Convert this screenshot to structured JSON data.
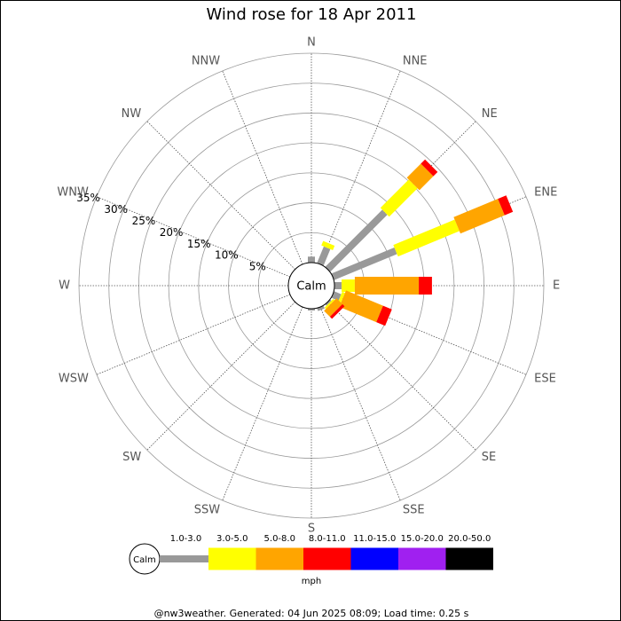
{
  "chart_data": {
    "type": "wind_rose",
    "title": "Wind rose for 18 Apr 2011",
    "directions": [
      "N",
      "NNE",
      "NE",
      "ENE",
      "E",
      "ESE",
      "SE",
      "SSE",
      "S",
      "SSW",
      "SW",
      "WSW",
      "W",
      "WNW",
      "NW",
      "NNW"
    ],
    "rlim": [
      0,
      35
    ],
    "rticks": [
      {
        "value": 5,
        "label": "5%"
      },
      {
        "value": 10,
        "label": "10%"
      },
      {
        "value": 15,
        "label": "15%"
      },
      {
        "value": 20,
        "label": "20%"
      },
      {
        "value": 25,
        "label": "25%"
      },
      {
        "value": 30,
        "label": "30%"
      },
      {
        "value": 35,
        "label": "35%"
      }
    ],
    "calm_label": "Calm",
    "legend_unit": "mph",
    "series": [
      {
        "name": "1.0-3.0",
        "color": "#999999",
        "values": [
          1,
          3,
          13.5,
          11.4,
          1.2,
          1.3,
          0.3,
          0.5,
          0.3,
          0,
          0,
          0,
          0,
          0,
          0,
          0
        ]
      },
      {
        "name": "3.0-5.0",
        "color": "#ffff00",
        "values": [
          0,
          0.8,
          6.7,
          11.1,
          2.2,
          0.5,
          0.3,
          0,
          0,
          0,
          0,
          0,
          0,
          0,
          0,
          0
        ]
      },
      {
        "name": "5.0-8.0",
        "color": "#ffa500",
        "values": [
          0,
          0,
          3.3,
          8,
          10.7,
          6.7,
          1.4,
          0,
          0,
          0,
          0,
          0,
          0,
          0,
          0,
          0
        ]
      },
      {
        "name": "8.0-11.0",
        "color": "#ff0000",
        "values": [
          0,
          0,
          1,
          1.5,
          2.2,
          1.6,
          0.5,
          0,
          0,
          0,
          0,
          0,
          0,
          0,
          0,
          0
        ]
      },
      {
        "name": "11.0-15.0",
        "color": "#0000ff",
        "values": [
          0,
          0,
          0,
          0,
          0,
          0,
          0,
          0,
          0,
          0,
          0,
          0,
          0,
          0,
          0,
          0
        ]
      },
      {
        "name": "15.0-20.0",
        "color": "#a020f0",
        "values": [
          0,
          0,
          0,
          0,
          0,
          0,
          0,
          0,
          0,
          0,
          0,
          0,
          0,
          0,
          0,
          0
        ]
      },
      {
        "name": "20.0-50.0",
        "color": "#000000",
        "values": [
          0,
          0,
          0,
          0,
          0,
          0,
          0,
          0,
          0,
          0,
          0,
          0,
          0,
          0,
          0,
          0
        ]
      }
    ]
  },
  "footer": "@nw3weather. Generated: 04 Jun 2025 08:09; Load time: 0.25 s"
}
